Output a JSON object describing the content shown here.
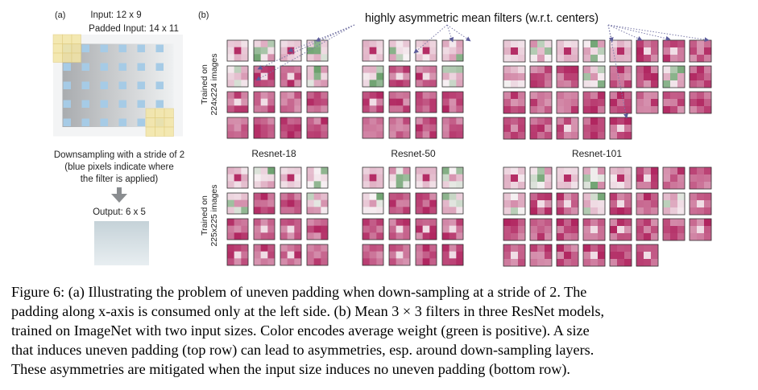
{
  "panel_a": {
    "label": "(a)",
    "input_text": "Input: 12 x 9",
    "padded_text": "Padded Input: 14 x 11",
    "downsample_lines": [
      "Downsampling with a stride of 2",
      "(blue pixels indicate where",
      "the filter is applied)"
    ],
    "output_text": "Output: 6 x 5",
    "colors": {
      "gradient_start": "#a9acaf",
      "gradient_end": "#eef0f1",
      "blue_pixel": "#a6cbe6",
      "yellow_pad": "#f4e6a6",
      "yellow_line": "#e0cc7e",
      "arrow": "#8a8d90"
    }
  },
  "panel_b": {
    "label": "(b)",
    "annotation": "highly asymmetric mean filters (w.r.t. centers)",
    "row_labels": [
      [
        "Trained on",
        "224x224 images"
      ],
      [
        "Trained on",
        "225x225 images"
      ]
    ],
    "models": [
      "Resnet-18",
      "Resnet-50",
      "Resnet-101"
    ],
    "colors": {
      "green": "#2e7d32",
      "magenta": "#b0245f",
      "neutral": "#f7f2f4",
      "arrow": "#7a7aa8"
    }
  },
  "caption": {
    "lines": [
      "Figure 6: (a) Illustrating the problem of uneven padding when down-sampling at a stride of 2. The",
      "padding along x-axis is consumed only at the left side. (b) Mean 3 × 3 filters in three ResNet models,",
      "trained on ImageNet with two input sizes. Color encodes average weight (green is positive). A size",
      "that induces uneven padding (top row) can lead to asymmetries, esp. around down-sampling layers.",
      "These asymmetries are mitigated when the input size induces no uneven padding (bottom row)."
    ]
  }
}
